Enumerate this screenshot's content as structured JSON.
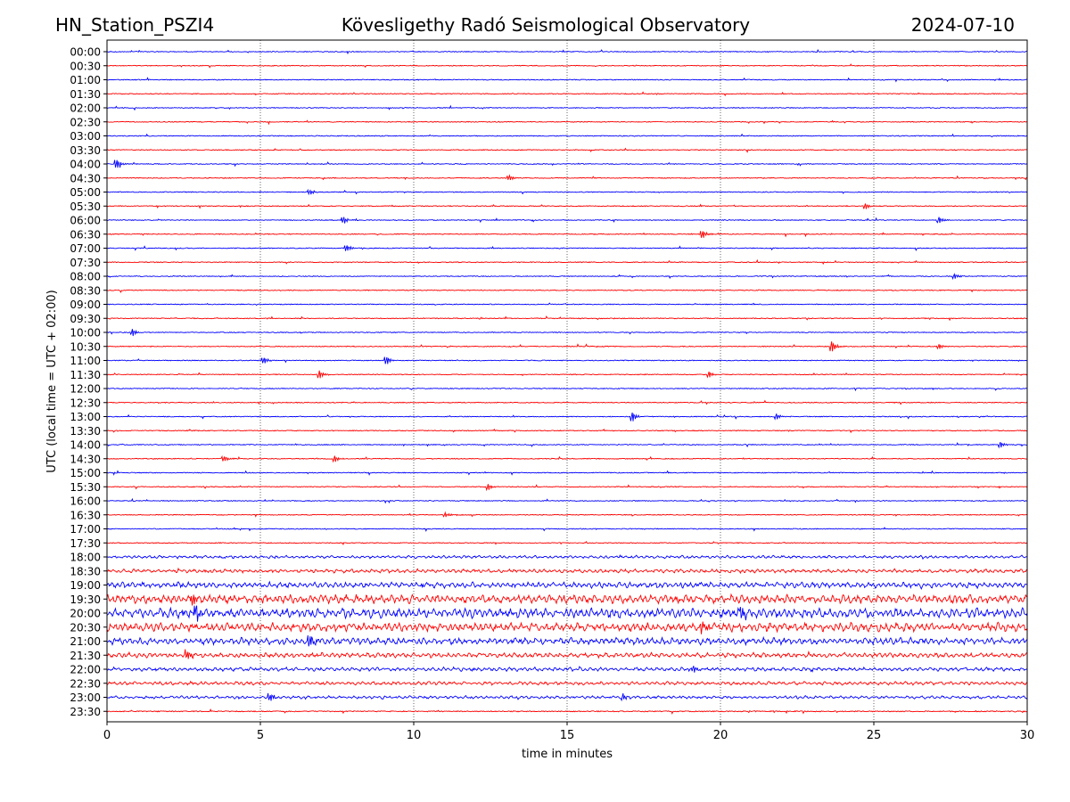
{
  "chart_data": {
    "type": "line",
    "title_left": "HN_Station_PSZI4",
    "title_center": "Kövesligethy Radó Seismological Observatory",
    "title_right": "2024-07-10",
    "xlabel": "time in minutes",
    "ylabel": "UTC (local time = UTC + 02:00)",
    "xlim": [
      0,
      30
    ],
    "x_ticks": [
      "0",
      "5",
      "10",
      "15",
      "20",
      "25",
      "30"
    ],
    "x_tick_values": [
      0,
      5,
      10,
      15,
      20,
      25,
      30
    ],
    "vertical_gridlines": [
      5,
      10,
      15,
      20,
      25
    ],
    "grid": "dotted vertical at each 5 minutes",
    "series_colors": [
      "#0000ff",
      "#ff0000"
    ],
    "rows": [
      "00:00",
      "00:30",
      "01:00",
      "01:30",
      "02:00",
      "02:30",
      "03:00",
      "03:30",
      "04:00",
      "04:30",
      "05:00",
      "05:30",
      "06:00",
      "06:30",
      "07:00",
      "07:30",
      "08:00",
      "08:30",
      "09:00",
      "09:30",
      "10:00",
      "10:30",
      "11:00",
      "11:30",
      "12:00",
      "12:30",
      "13:00",
      "13:30",
      "14:00",
      "14:30",
      "15:00",
      "15:30",
      "16:00",
      "16:30",
      "17:00",
      "17:30",
      "18:00",
      "18:30",
      "19:00",
      "19:30",
      "20:00",
      "20:30",
      "21:00",
      "21:30",
      "22:00",
      "22:30",
      "23:00",
      "23:30"
    ],
    "noise_level": [
      1,
      1,
      1,
      1,
      1,
      1,
      1,
      1,
      1,
      1,
      1,
      1,
      1,
      1,
      1,
      1,
      1,
      1,
      1,
      1,
      1,
      1,
      1,
      1,
      1,
      1,
      1,
      1,
      1,
      1,
      1,
      1,
      1,
      1,
      1,
      1,
      1.5,
      2,
      3,
      4.5,
      5,
      4.5,
      3.5,
      2.5,
      2,
      1.8,
      1.5,
      1.2
    ],
    "events": [
      {
        "row": "04:00",
        "minute": 0.3,
        "amp": 7
      },
      {
        "row": "04:30",
        "minute": 13.1,
        "amp": 4
      },
      {
        "row": "05:00",
        "minute": 6.6,
        "amp": 4
      },
      {
        "row": "05:30",
        "minute": 24.7,
        "amp": 5
      },
      {
        "row": "06:00",
        "minute": 7.7,
        "amp": 5
      },
      {
        "row": "06:00",
        "minute": 27.1,
        "amp": 5
      },
      {
        "row": "06:30",
        "minute": 19.4,
        "amp": 6
      },
      {
        "row": "07:00",
        "minute": 7.8,
        "amp": 5
      },
      {
        "row": "08:00",
        "minute": 27.6,
        "amp": 4
      },
      {
        "row": "10:00",
        "minute": 0.8,
        "amp": 6
      },
      {
        "row": "10:30",
        "minute": 23.6,
        "amp": 9
      },
      {
        "row": "10:30",
        "minute": 27.1,
        "amp": 4
      },
      {
        "row": "11:00",
        "minute": 5.1,
        "amp": 5
      },
      {
        "row": "11:00",
        "minute": 9.1,
        "amp": 6
      },
      {
        "row": "11:30",
        "minute": 6.9,
        "amp": 7
      },
      {
        "row": "11:30",
        "minute": 19.6,
        "amp": 5
      },
      {
        "row": "13:00",
        "minute": 17.1,
        "amp": 8
      },
      {
        "row": "13:00",
        "minute": 21.8,
        "amp": 5
      },
      {
        "row": "14:00",
        "minute": 29.1,
        "amp": 5
      },
      {
        "row": "14:30",
        "minute": 3.8,
        "amp": 4
      },
      {
        "row": "14:30",
        "minute": 7.4,
        "amp": 5
      },
      {
        "row": "15:30",
        "minute": 12.4,
        "amp": 5
      },
      {
        "row": "16:30",
        "minute": 11.0,
        "amp": 4
      },
      {
        "row": "19:30",
        "minute": 2.8,
        "amp": 8
      },
      {
        "row": "20:00",
        "minute": 2.9,
        "amp": 11
      },
      {
        "row": "20:00",
        "minute": 20.7,
        "amp": 9
      },
      {
        "row": "20:30",
        "minute": 19.4,
        "amp": 9
      },
      {
        "row": "21:00",
        "minute": 6.6,
        "amp": 10
      },
      {
        "row": "21:30",
        "minute": 2.6,
        "amp": 6
      },
      {
        "row": "22:00",
        "minute": 19.1,
        "amp": 5
      },
      {
        "row": "23:00",
        "minute": 5.3,
        "amp": 6
      },
      {
        "row": "23:00",
        "minute": 16.8,
        "amp": 5
      }
    ]
  }
}
